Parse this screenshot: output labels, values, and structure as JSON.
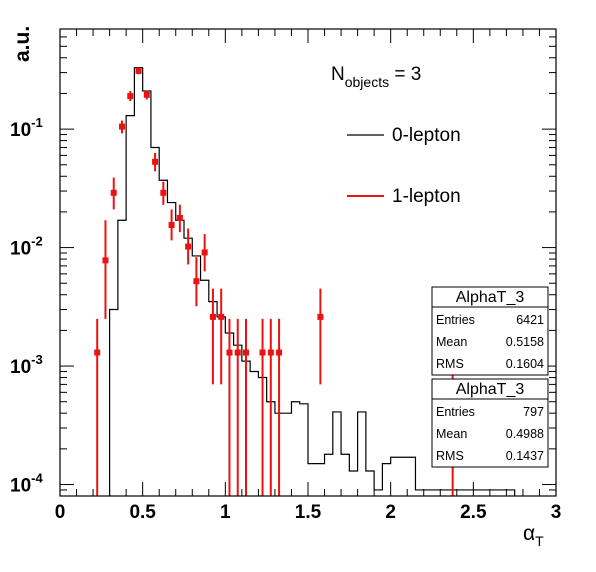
{
  "chart_data": {
    "type": "histogram",
    "xlabel": "αT",
    "xlabel_main": "α",
    "xlabel_sub": "T",
    "ylabel": "a.u.",
    "y_scale": "log",
    "xlim": [
      0,
      3
    ],
    "ylim": [
      8e-05,
      0.7
    ],
    "x_ticks": [
      {
        "value": 0,
        "label": "0"
      },
      {
        "value": 0.5,
        "label": "0.5"
      },
      {
        "value": 1,
        "label": "1"
      },
      {
        "value": 1.5,
        "label": "1.5"
      },
      {
        "value": 2,
        "label": "2"
      },
      {
        "value": 2.5,
        "label": "2.5"
      },
      {
        "value": 3,
        "label": "3"
      }
    ],
    "y_ticks": [
      {
        "value": 0.0001,
        "base": "10",
        "exp": "-4"
      },
      {
        "value": 0.001,
        "base": "10",
        "exp": "-3"
      },
      {
        "value": 0.01,
        "base": "10",
        "exp": "-2"
      },
      {
        "value": 0.1,
        "base": "10",
        "exp": "-1"
      }
    ],
    "annotation": {
      "main": "N",
      "sub": "objects",
      "rest": " = 3"
    },
    "legend": [
      {
        "label": "0-lepton",
        "color": "#000000"
      },
      {
        "label": "1-lepton",
        "color": "#ee1111"
      }
    ],
    "bin_width": 0.05,
    "series": [
      {
        "name": "0-lepton",
        "style": "step",
        "color": "#000000",
        "bins": [
          [
            0.3,
            0.003
          ],
          [
            0.35,
            0.017
          ],
          [
            0.4,
            0.13
          ],
          [
            0.45,
            0.33
          ],
          [
            0.5,
            0.21
          ],
          [
            0.55,
            0.07
          ],
          [
            0.6,
            0.037
          ],
          [
            0.65,
            0.024
          ],
          [
            0.7,
            0.017
          ],
          [
            0.75,
            0.012
          ],
          [
            0.8,
            0.0085
          ],
          [
            0.85,
            0.0053
          ],
          [
            0.9,
            0.0035
          ],
          [
            0.95,
            0.0026
          ],
          [
            1.0,
            0.0019
          ],
          [
            1.05,
            0.0015
          ],
          [
            1.1,
            0.0011
          ],
          [
            1.15,
            0.0009
          ],
          [
            1.2,
            0.0008
          ],
          [
            1.25,
            0.0005
          ],
          [
            1.3,
            0.0004
          ],
          [
            1.35,
            0.0004
          ],
          [
            1.4,
            0.0005
          ],
          [
            1.45,
            0.00048
          ],
          [
            1.5,
            0.00015
          ],
          [
            1.55,
            0.00015
          ],
          [
            1.6,
            0.00018
          ],
          [
            1.65,
            0.00041
          ],
          [
            1.7,
            0.00018
          ],
          [
            1.75,
            0.00013
          ],
          [
            1.8,
            0.00041
          ],
          [
            1.85,
            0.00013
          ],
          [
            1.9,
            9e-05
          ],
          [
            1.95,
            0.00015
          ],
          [
            2.0,
            0.00017
          ],
          [
            2.05,
            0.00017
          ],
          [
            2.1,
            0.00017
          ],
          [
            2.15,
            9e-05
          ],
          [
            2.2,
            9e-05
          ],
          [
            2.25,
            9e-05
          ],
          [
            2.3,
            9e-05
          ],
          [
            2.35,
            9e-05
          ],
          [
            2.4,
            9e-05
          ],
          [
            2.45,
            9e-05
          ],
          [
            2.5,
            9e-05
          ],
          [
            2.55,
            9e-05
          ],
          [
            2.6,
            9e-05
          ],
          [
            2.65,
            9e-05
          ],
          [
            2.7,
            9e-05
          ]
        ],
        "outline_bins": [
          [
            0.55,
            0.0003
          ],
          [
            1.85,
            0.00022
          ],
          [
            1.9,
            0.00013
          ],
          [
            2.0,
            0.00017
          ],
          [
            2.15,
            0.0003
          ],
          [
            2.2,
            0.0001
          ],
          [
            2.25,
            0.0003
          ],
          [
            2.3,
            9e-05
          ],
          [
            2.35,
            9e-05
          ],
          [
            2.4,
            9e-05
          ],
          [
            2.45,
            0.0003
          ],
          [
            2.5,
            9e-05
          ],
          [
            2.55,
            9e-05
          ],
          [
            2.6,
            9e-05
          ],
          [
            2.65,
            0.0003
          ],
          [
            2.7,
            9e-05
          ]
        ]
      },
      {
        "name": "1-lepton",
        "style": "markers",
        "color": "#ee1111",
        "points": [
          {
            "x": 0.225,
            "y": 0.0013,
            "lo": 8e-05,
            "hi": 0.0025
          },
          {
            "x": 0.275,
            "y": 0.0078,
            "lo": 0.0025,
            "hi": 0.017
          },
          {
            "x": 0.325,
            "y": 0.029,
            "lo": 0.021,
            "hi": 0.039
          },
          {
            "x": 0.375,
            "y": 0.105,
            "lo": 0.092,
            "hi": 0.118
          },
          {
            "x": 0.425,
            "y": 0.19,
            "lo": 0.172,
            "hi": 0.21
          },
          {
            "x": 0.475,
            "y": 0.31,
            "lo": 0.29,
            "hi": 0.33
          },
          {
            "x": 0.525,
            "y": 0.195,
            "lo": 0.178,
            "hi": 0.212
          },
          {
            "x": 0.575,
            "y": 0.053,
            "lo": 0.044,
            "hi": 0.063
          },
          {
            "x": 0.625,
            "y": 0.029,
            "lo": 0.023,
            "hi": 0.036
          },
          {
            "x": 0.675,
            "y": 0.0155,
            "lo": 0.0115,
            "hi": 0.021
          },
          {
            "x": 0.725,
            "y": 0.0178,
            "lo": 0.0135,
            "hi": 0.023
          },
          {
            "x": 0.775,
            "y": 0.0102,
            "lo": 0.0072,
            "hi": 0.0145
          },
          {
            "x": 0.825,
            "y": 0.0052,
            "lo": 0.0032,
            "hi": 0.0083
          },
          {
            "x": 0.875,
            "y": 0.0091,
            "lo": 0.0063,
            "hi": 0.013
          },
          {
            "x": 0.925,
            "y": 0.0026,
            "lo": 0.0007,
            "hi": 0.0045
          },
          {
            "x": 0.975,
            "y": 0.0026,
            "lo": 0.0007,
            "hi": 0.0045
          },
          {
            "x": 1.025,
            "y": 0.0013,
            "lo": 8e-05,
            "hi": 0.0025
          },
          {
            "x": 1.075,
            "y": 0.0013,
            "lo": 8e-05,
            "hi": 0.0025
          },
          {
            "x": 1.125,
            "y": 0.0013,
            "lo": 8e-05,
            "hi": 0.0025
          },
          {
            "x": 1.225,
            "y": 0.0013,
            "lo": 8e-05,
            "hi": 0.0025
          },
          {
            "x": 1.275,
            "y": 0.0013,
            "lo": 8e-05,
            "hi": 0.0025
          },
          {
            "x": 1.325,
            "y": 0.0013,
            "lo": 8e-05,
            "hi": 0.0025
          },
          {
            "x": 1.575,
            "y": 0.0026,
            "lo": 0.0007,
            "hi": 0.0045
          },
          {
            "x": 2.375,
            "y": 0.0013,
            "lo": 8e-05,
            "hi": 0.0025
          }
        ]
      }
    ],
    "stat_boxes": [
      {
        "title": "AlphaT_3",
        "rows": [
          {
            "label": "Entries",
            "value": "6421"
          },
          {
            "label": "Mean",
            "value": "0.5158"
          },
          {
            "label": "RMS",
            "value": "0.1604"
          }
        ]
      },
      {
        "title": "AlphaT_3",
        "rows": [
          {
            "label": "Entries",
            "value": "797"
          },
          {
            "label": "Mean",
            "value": "0.4988"
          },
          {
            "label": "RMS",
            "value": "0.1437"
          }
        ]
      }
    ]
  }
}
